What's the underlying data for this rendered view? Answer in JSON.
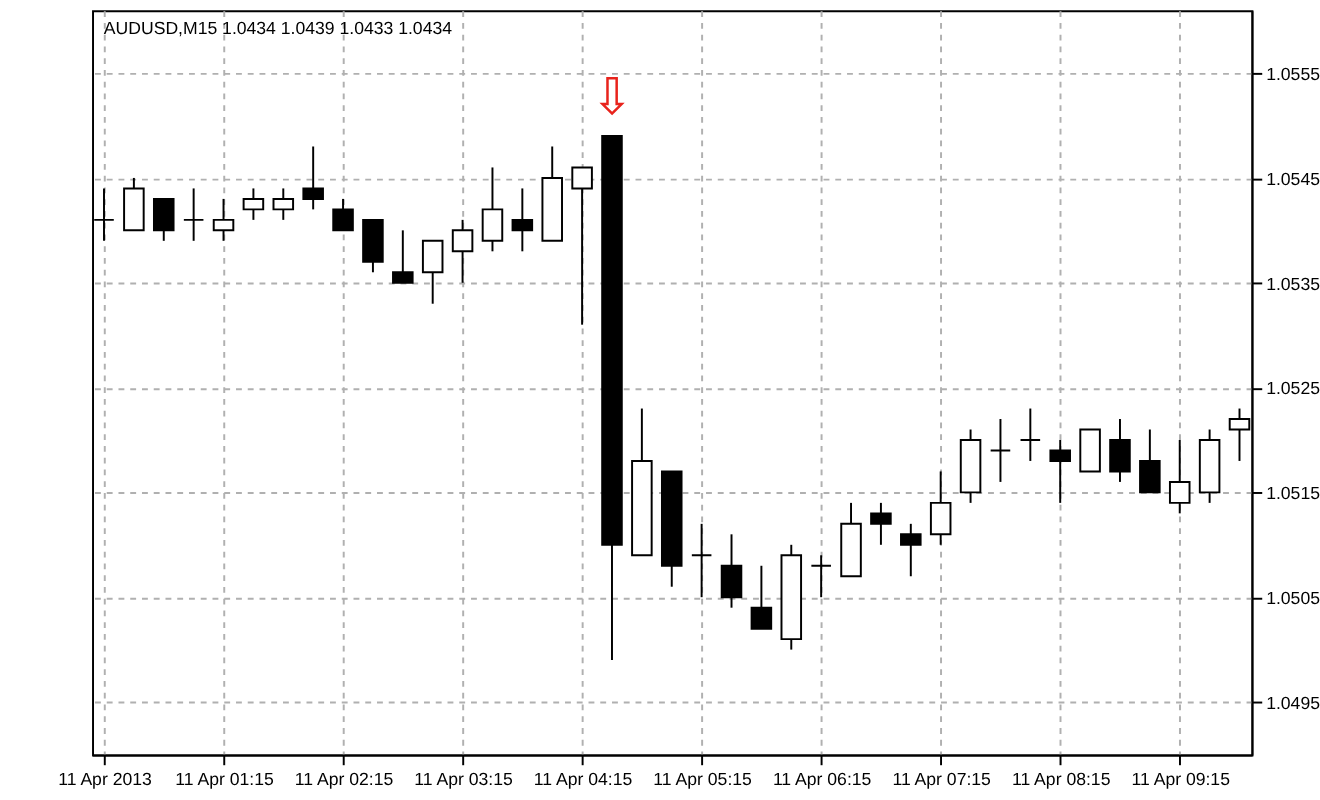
{
  "chart_data": {
    "type": "candlestick",
    "title": "AUDUSD,M15  1.0434 1.0439 1.0433 1.0434",
    "categories": [
      "11 Apr 2013",
      null,
      null,
      null,
      "11 Apr 01:15",
      null,
      null,
      null,
      "11 Apr 02:15",
      null,
      null,
      null,
      "11 Apr 03:15",
      null,
      null,
      null,
      "11 Apr 04:15",
      null,
      null,
      null,
      "11 Apr 05:15",
      null,
      null,
      null,
      "11 Apr 06:15",
      null,
      null,
      null,
      "11 Apr 07:15",
      null,
      null,
      null,
      "11 Apr 08:15",
      null,
      null,
      null,
      "11 Apr 09:15",
      null,
      null
    ],
    "ohlc": [
      [
        1.0541,
        1.0544,
        1.0539,
        1.0541
      ],
      [
        1.054,
        1.0545,
        1.054,
        1.0544
      ],
      [
        1.0543,
        1.0543,
        1.0539,
        1.054
      ],
      [
        1.0541,
        1.0544,
        1.0539,
        1.0541
      ],
      [
        1.054,
        1.0543,
        1.0539,
        1.0541
      ],
      [
        1.0542,
        1.0544,
        1.0541,
        1.0543
      ],
      [
        1.0542,
        1.0544,
        1.0541,
        1.0543
      ],
      [
        1.0544,
        1.0548,
        1.0542,
        1.0543
      ],
      [
        1.0542,
        1.0543,
        1.054,
        1.054
      ],
      [
        1.0541,
        1.0541,
        1.0536,
        1.0537
      ],
      [
        1.0536,
        1.054,
        1.0535,
        1.0535
      ],
      [
        1.0536,
        1.0539,
        1.0533,
        1.0539
      ],
      [
        1.0538,
        1.0541,
        1.0535,
        1.054
      ],
      [
        1.0539,
        1.0546,
        1.0538,
        1.0542
      ],
      [
        1.0541,
        1.0544,
        1.0538,
        1.054
      ],
      [
        1.0539,
        1.0548,
        1.0539,
        1.0545
      ],
      [
        1.0544,
        1.0546,
        1.0531,
        1.0546
      ],
      [
        1.0549,
        1.0549,
        1.0499,
        1.051
      ],
      [
        1.0509,
        1.0523,
        1.0509,
        1.0518
      ],
      [
        1.0517,
        1.0517,
        1.0506,
        1.0508
      ],
      [
        1.0509,
        1.0512,
        1.0505,
        1.0509
      ],
      [
        1.0508,
        1.0511,
        1.0504,
        1.0505
      ],
      [
        1.0504,
        1.0508,
        1.0502,
        1.0502
      ],
      [
        1.0501,
        1.051,
        1.05,
        1.0509
      ],
      [
        1.0508,
        1.0509,
        1.0505,
        1.0508
      ],
      [
        1.0507,
        1.0514,
        1.0507,
        1.0512
      ],
      [
        1.0513,
        1.0514,
        1.051,
        1.0512
      ],
      [
        1.0511,
        1.0512,
        1.0507,
        1.051
      ],
      [
        1.0511,
        1.0517,
        1.051,
        1.0514
      ],
      [
        1.0515,
        1.0521,
        1.0514,
        1.052
      ],
      [
        1.0519,
        1.0522,
        1.0516,
        1.0519
      ],
      [
        1.052,
        1.0523,
        1.0518,
        1.052
      ],
      [
        1.0519,
        1.052,
        1.0514,
        1.0518
      ],
      [
        1.0517,
        1.0521,
        1.0517,
        1.0521
      ],
      [
        1.052,
        1.0522,
        1.0516,
        1.0517
      ],
      [
        1.0518,
        1.0521,
        1.0515,
        1.0515
      ],
      [
        1.0514,
        1.052,
        1.0513,
        1.0516
      ],
      [
        1.0515,
        1.0521,
        1.0514,
        1.052
      ],
      [
        1.0521,
        1.0523,
        1.0518,
        1.0522
      ]
    ],
    "ylim": [
      1.049,
      1.0561
    ],
    "yticks": [
      1.0495,
      1.0505,
      1.0515,
      1.0525,
      1.0535,
      1.0545,
      1.0555
    ],
    "grid": true,
    "annotations": [
      "⇩"
    ]
  }
}
